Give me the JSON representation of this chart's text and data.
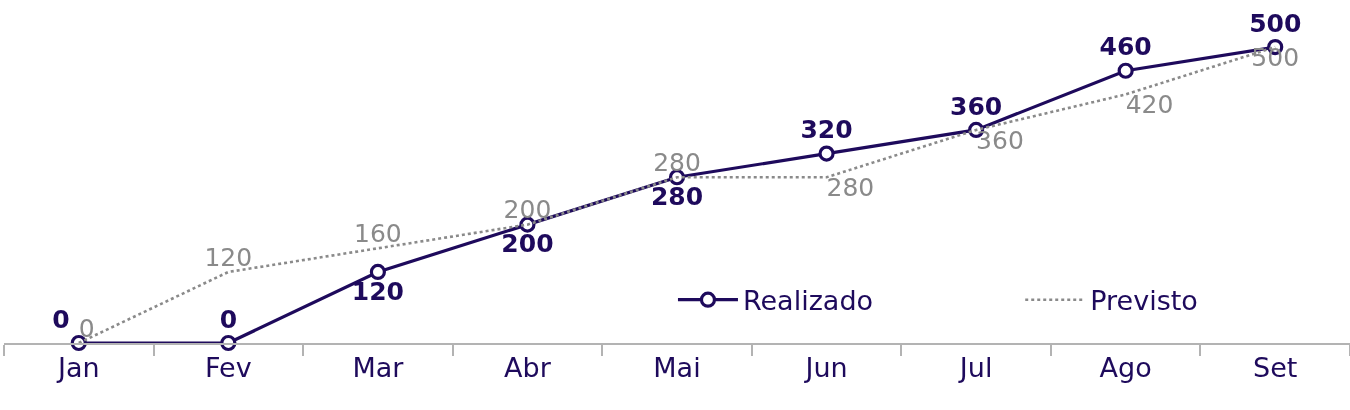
{
  "chart_data": {
    "type": "line",
    "categories": [
      "Jan",
      "Fev",
      "Mar",
      "Abr",
      "Mai",
      "Jun",
      "Jul",
      "Ago",
      "Set"
    ],
    "series": [
      {
        "name": "Realizado",
        "color": "#1e0a5c",
        "values": [
          0,
          0,
          120,
          200,
          280,
          320,
          360,
          460,
          500
        ],
        "marker": "circle",
        "line_style": "solid"
      },
      {
        "name": "Previsto",
        "color": "#8a8a8a",
        "values": [
          0,
          120,
          160,
          200,
          280,
          280,
          360,
          420,
          500
        ],
        "marker": "none",
        "line_style": "dotted"
      }
    ],
    "data_labels": true,
    "legend": "bottom right"
  }
}
